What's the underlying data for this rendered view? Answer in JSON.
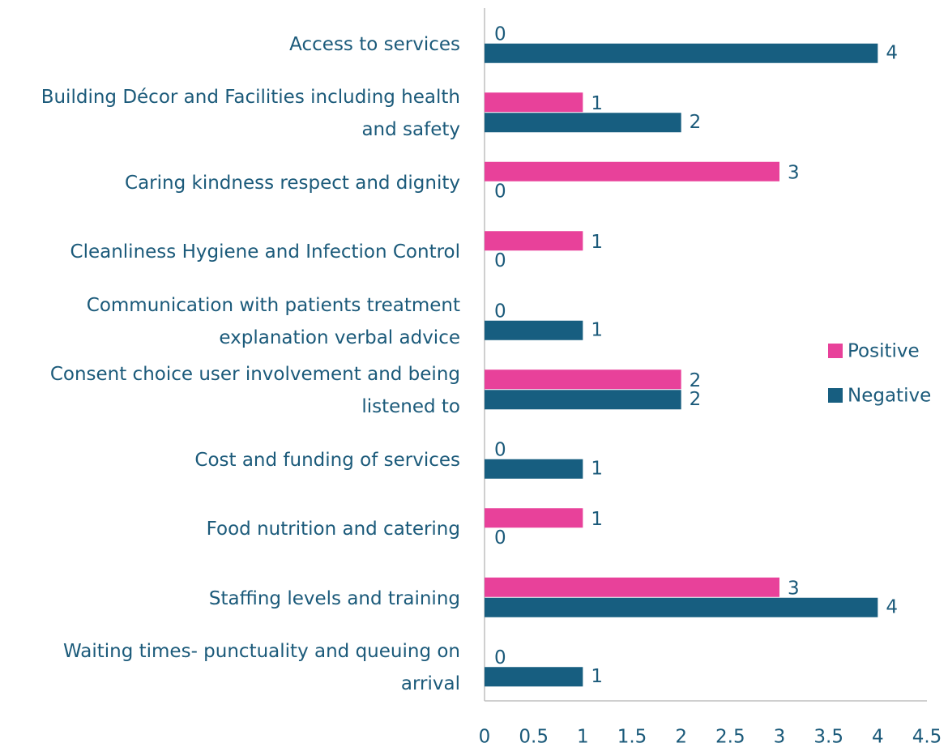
{
  "chart_data": {
    "type": "bar",
    "orientation": "horizontal",
    "categories": [
      "Access to services",
      "Building Décor and Facilities including health and safety",
      "Caring kindness respect and dignity",
      "Cleanliness Hygiene and Infection Control",
      "Communication with patients treatment explanation verbal advice",
      "Consent choice user involvement and being listened to",
      "Cost and funding of services",
      "Food nutrition and catering",
      "Staffing levels and training",
      "Waiting times- punctuality and queuing on arrival"
    ],
    "series": [
      {
        "name": "Positive",
        "color": "#e8419a",
        "values": [
          0,
          1,
          3,
          1,
          0,
          2,
          0,
          1,
          3,
          0
        ]
      },
      {
        "name": "Negative",
        "color": "#175e80",
        "values": [
          4,
          2,
          0,
          0,
          1,
          2,
          1,
          0,
          4,
          1
        ]
      }
    ],
    "xlim": [
      0,
      4.5
    ],
    "xticks": [
      0,
      0.5,
      1,
      1.5,
      2,
      2.5,
      3,
      3.5,
      4,
      4.5
    ],
    "legend": "right",
    "grid": false
  }
}
